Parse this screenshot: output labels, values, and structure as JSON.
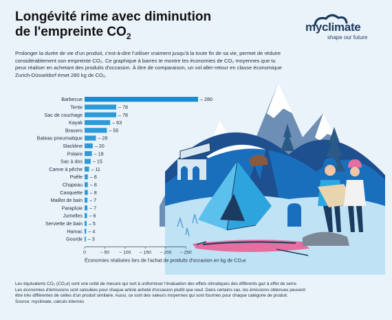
{
  "title": {
    "line1": "Longévité rime avec diminution",
    "line2": "de l'empreinte CO",
    "sub": "2"
  },
  "logo": {
    "name": "myclimate",
    "tagline": "shape our future"
  },
  "intro": "Prolonger la durée de vie d'un produit, c'est-à-dire l'utiliser vraiment jusqu'à la toute fin de sa vie, permet de réduire considérablement son empreinte CO₂. Ce graphique à barres te montre les économies de CO₂ moyennes que tu peux réaliser en achetant des produits d'occasion. À titre de comparaison, un vol aller-retour en classe économique Zurich-Düsseldorf émet 280 kg de CO₂.",
  "chart_data": {
    "type": "bar",
    "orientation": "horizontal",
    "categories": [
      "Barbecue",
      "Tente",
      "Sac de couchage",
      "Kayak",
      "Brasero",
      "Bateau pneumatique",
      "Slackline",
      "Polaire",
      "Sac à dos",
      "Canne à pêche",
      "Poêle",
      "Chapeau",
      "Casquette",
      "Maillot de bain",
      "Parapluie",
      "Jumelles",
      "Serviette de bain",
      "Hamac",
      "Gourde"
    ],
    "values": [
      280,
      78,
      78,
      63,
      55,
      28,
      20,
      18,
      15,
      11,
      8,
      8,
      8,
      7,
      7,
      6,
      5,
      4,
      3
    ],
    "value_labels": [
      "– 280",
      "– 78",
      "– 78",
      "– 63",
      "– 55",
      "– 28",
      "– 20",
      "– 18",
      "– 15",
      "– 11",
      "– 8",
      "– 8",
      "– 8",
      "– 7",
      "– 7",
      "– 6",
      "– 5",
      "– 4",
      "– 3"
    ],
    "xticks": [
      0,
      50,
      100,
      150,
      200,
      250
    ],
    "xtick_labels": [
      "0",
      "– 50",
      "– 100",
      "– 150",
      "– 200",
      "– 250"
    ],
    "xlim": [
      0,
      280
    ],
    "xlabel": "Économies réalisées lors de l'achat de produits d'occasion en kg de CO₂e",
    "colors": {
      "top_bar": "#1a8ccf",
      "bar": "#2d9ad8",
      "text": "#1a2a3a"
    }
  },
  "footnote": {
    "lines": [
      "Les équivalents CO₂ (CO₂e) sont une unité de mesure qui sert à uniformiser l'évaluation des effets climatiques des différents gaz à effet de serre.",
      "Les économies d'émissions sont calculées pour chaque article acheté d'occasion plutôt que neuf. Dans certains cas, les émissions obtenues peuvent",
      "être très différentes de celles d'un produit similaire. Aussi, ce sont des valeurs moyennes qui sont fournies pour chaque catégorie de produit.",
      "Source: myclimate, calculs internes"
    ]
  }
}
